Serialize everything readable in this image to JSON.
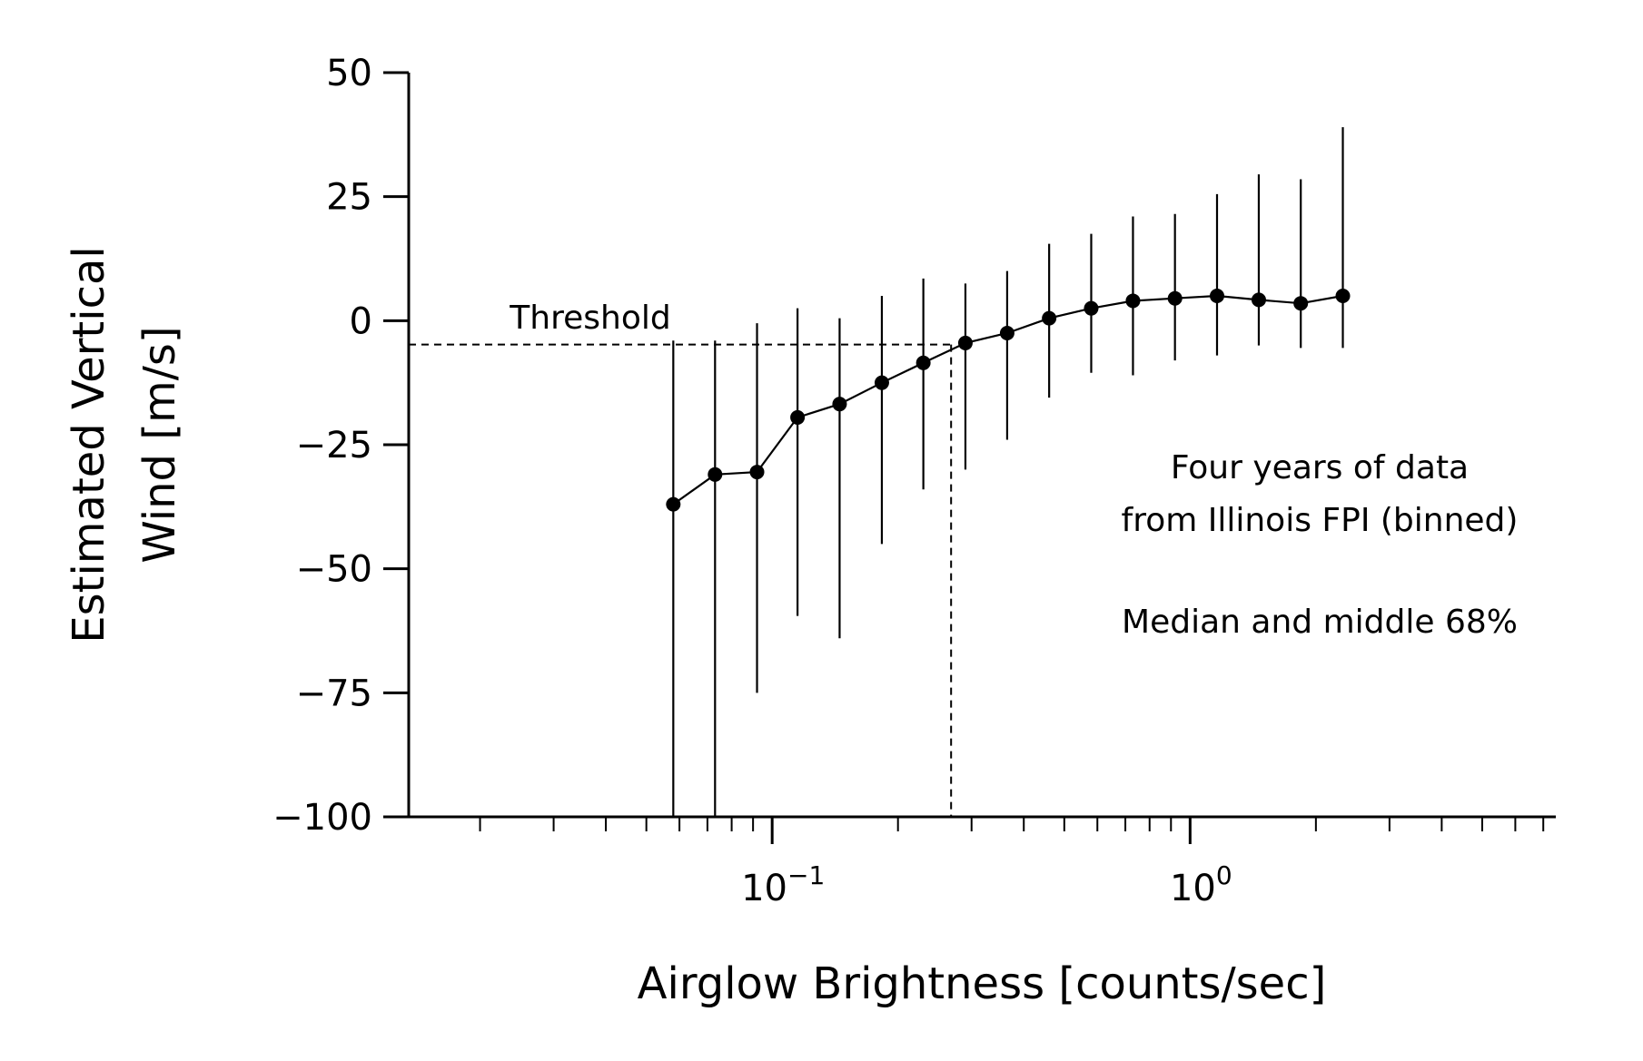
{
  "chart_data": {
    "type": "scatter",
    "xlabel": "Airglow Brightness [counts/sec]",
    "ylabel_lines": [
      "Estimated Vertical",
      "Wind [m/s]"
    ],
    "xscale": "log",
    "xlim": [
      0.0135,
      7.5
    ],
    "ylim": [
      -100,
      50
    ],
    "y_ticks": [
      50,
      25,
      0,
      -25,
      -50,
      -75,
      -100
    ],
    "y_tick_labels": [
      "50",
      "25",
      "0",
      "−25",
      "−50",
      "−75",
      "−100"
    ],
    "x_major_ticks": [
      {
        "value": 0.1,
        "base": "10",
        "exp": "−1"
      },
      {
        "value": 1,
        "base": "10",
        "exp": "0"
      }
    ],
    "x_minor_ticks": [
      0.02,
      0.03,
      0.04,
      0.05,
      0.06,
      0.07,
      0.08,
      0.09,
      0.2,
      0.3,
      0.4,
      0.5,
      0.6,
      0.7,
      0.8,
      0.9,
      2,
      3,
      4,
      5,
      6,
      7
    ],
    "grid": false,
    "legend": "none",
    "series": [
      {
        "x": [
          0.058,
          0.073,
          0.092,
          0.115,
          0.145,
          0.183,
          0.23,
          0.29,
          0.365,
          0.46,
          0.58,
          0.73,
          0.92,
          1.16,
          1.46,
          1.84,
          2.32
        ],
        "y": [
          -37,
          -31,
          -30.5,
          -19.5,
          -16.8,
          -12.5,
          -8.5,
          -4.5,
          -2.5,
          0.5,
          2.5,
          4,
          4.5,
          5,
          4.2,
          3.5,
          5
        ],
        "y_low": [
          -100,
          -100,
          -75,
          -59.5,
          -64,
          -45,
          -34,
          -30,
          -24,
          -15.5,
          -10.5,
          -11,
          -8,
          -7,
          -5,
          -5.5,
          -5.5
        ],
        "y_high": [
          -4,
          -4,
          -0.5,
          2.5,
          0.5,
          5,
          8.5,
          7.5,
          10,
          15.5,
          17.5,
          21,
          21.5,
          25.5,
          29.5,
          28.5,
          39
        ]
      }
    ],
    "threshold": {
      "x": 0.268,
      "y": -4.8,
      "label": "Threshold"
    },
    "annotations": {
      "info_lines": [
        "Four years of data",
        "from Illinois FPI (binned)"
      ],
      "stat_line": "Median and middle 68%"
    },
    "colors": {
      "line": "#000000",
      "background": "#ffffff"
    }
  }
}
